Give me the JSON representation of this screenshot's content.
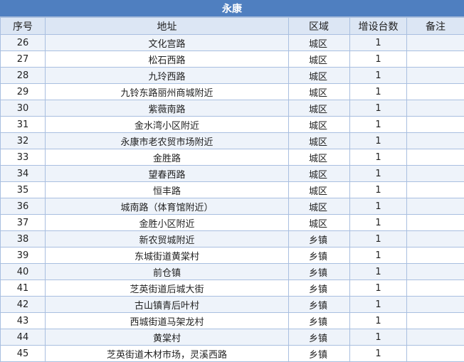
{
  "title": "永康",
  "headers": {
    "no": "序号",
    "address": "地址",
    "area": "区域",
    "count": "增设台数",
    "note": "备注"
  },
  "rows": [
    {
      "no": "26",
      "address": "文化宫路",
      "area": "城区",
      "count": "1",
      "note": ""
    },
    {
      "no": "27",
      "address": "松石西路",
      "area": "城区",
      "count": "1",
      "note": ""
    },
    {
      "no": "28",
      "address": "九玲西路",
      "area": "城区",
      "count": "1",
      "note": ""
    },
    {
      "no": "29",
      "address": "九铃东路丽州商城附近",
      "area": "城区",
      "count": "1",
      "note": ""
    },
    {
      "no": "30",
      "address": "紫薇南路",
      "area": "城区",
      "count": "1",
      "note": ""
    },
    {
      "no": "31",
      "address": "金水湾小区附近",
      "area": "城区",
      "count": "1",
      "note": ""
    },
    {
      "no": "32",
      "address": "永康市老农贸市场附近",
      "area": "城区",
      "count": "1",
      "note": ""
    },
    {
      "no": "33",
      "address": "金胜路",
      "area": "城区",
      "count": "1",
      "note": ""
    },
    {
      "no": "34",
      "address": "望春西路",
      "area": "城区",
      "count": "1",
      "note": ""
    },
    {
      "no": "35",
      "address": "恒丰路",
      "area": "城区",
      "count": "1",
      "note": ""
    },
    {
      "no": "36",
      "address": "城南路（体育馆附近）",
      "area": "城区",
      "count": "1",
      "note": ""
    },
    {
      "no": "37",
      "address": "金胜小区附近",
      "area": "城区",
      "count": "1",
      "note": ""
    },
    {
      "no": "38",
      "address": "新农贸城附近",
      "area": "乡镇",
      "count": "1",
      "note": ""
    },
    {
      "no": "39",
      "address": "东城街道黄棠村",
      "area": "乡镇",
      "count": "1",
      "note": ""
    },
    {
      "no": "40",
      "address": "前仓镇",
      "area": "乡镇",
      "count": "1",
      "note": ""
    },
    {
      "no": "41",
      "address": "芝英街道后城大街",
      "area": "乡镇",
      "count": "1",
      "note": ""
    },
    {
      "no": "42",
      "address": "古山镇青后叶村",
      "area": "乡镇",
      "count": "1",
      "note": ""
    },
    {
      "no": "43",
      "address": "西城街道马架龙村",
      "area": "乡镇",
      "count": "1",
      "note": ""
    },
    {
      "no": "44",
      "address": "黄棠村",
      "area": "乡镇",
      "count": "1",
      "note": ""
    },
    {
      "no": "45",
      "address": "芝英街道木材市场，灵溪西路",
      "area": "乡镇",
      "count": "1",
      "note": ""
    }
  ]
}
